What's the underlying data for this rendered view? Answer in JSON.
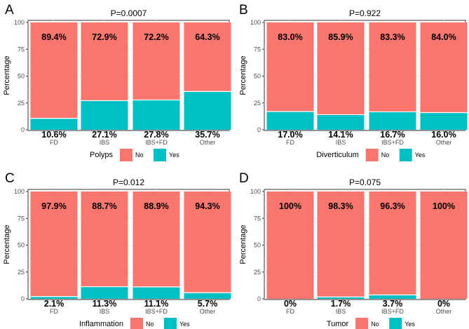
{
  "chart_data": [
    {
      "type": "bar",
      "stacked": true,
      "panel": "A",
      "title": "P=0.0007",
      "xlabel": "",
      "ylabel": "Percentage",
      "ylim": [
        0,
        100
      ],
      "yticks": [
        0,
        25,
        50,
        75,
        100
      ],
      "categories": [
        "FD",
        "IBS",
        "IBS+FD",
        "Other"
      ],
      "series": [
        {
          "name": "Yes",
          "color": "#00BFC4",
          "values": [
            10.6,
            27.1,
            27.8,
            35.7
          ],
          "labels": [
            "10.6%",
            "27.1%",
            "27.8%",
            "35.7%"
          ]
        },
        {
          "name": "No",
          "color": "#F8766D",
          "values": [
            89.4,
            72.9,
            72.2,
            64.3
          ],
          "labels": [
            "89.4%",
            "72.9%",
            "72.2%",
            "64.3%"
          ]
        }
      ],
      "legend": {
        "title": "Polyps",
        "placement": "bottom",
        "items": [
          "No",
          "Yes"
        ]
      }
    },
    {
      "type": "bar",
      "stacked": true,
      "panel": "B",
      "title": "P=0.922",
      "xlabel": "",
      "ylabel": "Percentage",
      "ylim": [
        0,
        100
      ],
      "yticks": [
        0,
        25,
        50,
        75,
        100
      ],
      "categories": [
        "FD",
        "IBS",
        "IBS+FD",
        "Other"
      ],
      "series": [
        {
          "name": "Yes",
          "color": "#00BFC4",
          "values": [
            17.0,
            14.1,
            16.7,
            16.0
          ],
          "labels": [
            "17.0%",
            "14.1%",
            "16.7%",
            "16.0%"
          ]
        },
        {
          "name": "No",
          "color": "#F8766D",
          "values": [
            83.0,
            85.9,
            83.3,
            84.0
          ],
          "labels": [
            "83.0%",
            "85.9%",
            "83.3%",
            "84.0%"
          ]
        }
      ],
      "legend": {
        "title": "Diverticulum",
        "placement": "bottom",
        "items": [
          "No",
          "Yes"
        ]
      }
    },
    {
      "type": "bar",
      "stacked": true,
      "panel": "C",
      "title": "P=0.012",
      "xlabel": "",
      "ylabel": "Percentage",
      "ylim": [
        0,
        100
      ],
      "yticks": [
        0,
        25,
        50,
        75,
        100
      ],
      "categories": [
        "FD",
        "IBS",
        "IBS+FD",
        "Other"
      ],
      "series": [
        {
          "name": "Yes",
          "color": "#00BFC4",
          "values": [
            2.1,
            11.3,
            11.1,
            5.7
          ],
          "labels": [
            "2.1%",
            "11.3%",
            "11.1%",
            "5.7%"
          ]
        },
        {
          "name": "No",
          "color": "#F8766D",
          "values": [
            97.9,
            88.7,
            88.9,
            94.3
          ],
          "labels": [
            "97.9%",
            "88.7%",
            "88.9%",
            "94.3%"
          ]
        }
      ],
      "legend": {
        "title": "Inflammation",
        "placement": "bottom",
        "items": [
          "No",
          "Yes"
        ]
      }
    },
    {
      "type": "bar",
      "stacked": true,
      "panel": "D",
      "title": "P=0.075",
      "xlabel": "",
      "ylabel": "Percentage",
      "ylim": [
        0,
        100
      ],
      "yticks": [
        0,
        25,
        50,
        75,
        100
      ],
      "categories": [
        "FD",
        "IBS",
        "IBS+FD",
        "Other"
      ],
      "series": [
        {
          "name": "Yes",
          "color": "#00BFC4",
          "values": [
            0,
            1.7,
            3.7,
            0
          ],
          "labels": [
            "0%",
            "1.7%",
            "3.7%",
            "0%"
          ]
        },
        {
          "name": "No",
          "color": "#F8766D",
          "values": [
            100,
            98.3,
            96.3,
            100
          ],
          "labels": [
            "100%",
            "98.3%",
            "96.3%",
            "100%"
          ]
        }
      ],
      "legend": {
        "title": "Tumor",
        "placement": "bottom",
        "items": [
          "No",
          "Yes"
        ]
      }
    }
  ]
}
